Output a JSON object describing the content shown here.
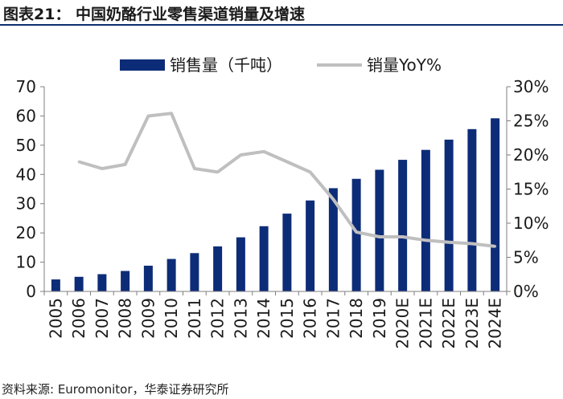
{
  "header": {
    "title": "图表21：  中国奶酪行业零售渠道销量及增速"
  },
  "source": "资料来源: Euromonitor，华泰证券研究所",
  "colors": {
    "bar": "#0d2c78",
    "line": "#bfbfbf",
    "rule": "#0b2e6e",
    "axis": "#7f7f7f"
  },
  "chart_data": {
    "type": "bar+line",
    "categories": [
      "2005",
      "2006",
      "2007",
      "2008",
      "2009",
      "2010",
      "2011",
      "2012",
      "2013",
      "2014",
      "2015",
      "2016",
      "2017",
      "2018",
      "2019",
      "2020E",
      "2021E",
      "2022E",
      "2023E",
      "2024E"
    ],
    "series": [
      {
        "name": "销售量（千吨）",
        "type": "bar",
        "axis": "left",
        "values": [
          4.1,
          5.0,
          5.9,
          7.0,
          8.8,
          11.1,
          13.1,
          15.4,
          18.5,
          22.3,
          26.6,
          31.1,
          35.3,
          38.5,
          41.6,
          45.0,
          48.4,
          51.9,
          55.5,
          59.2
        ]
      },
      {
        "name": "销量YoY%",
        "type": "line",
        "axis": "right",
        "values": [
          null,
          19.0,
          18.0,
          18.6,
          25.7,
          26.1,
          18.0,
          17.5,
          20.0,
          20.5,
          19.0,
          17.5,
          13.5,
          8.7,
          8.0,
          8.0,
          7.5,
          7.2,
          7.0,
          6.6
        ]
      }
    ],
    "left_axis": {
      "min": 0,
      "max": 70,
      "ticks": [
        "0",
        "10",
        "20",
        "30",
        "40",
        "50",
        "60",
        "70"
      ]
    },
    "right_axis": {
      "min": 0,
      "max": 30,
      "ticks": [
        "0%",
        "5%",
        "10%",
        "15%",
        "20%",
        "25%",
        "30%"
      ]
    },
    "legend": {
      "position": "top",
      "entries": [
        "销售量（千吨）",
        "销量YoY%"
      ]
    }
  }
}
